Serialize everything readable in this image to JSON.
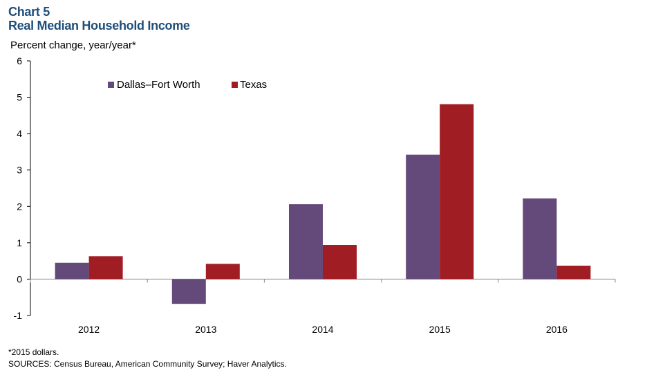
{
  "header": {
    "chart_number": "Chart 5",
    "title": "Real Median Household Income",
    "y_axis_label": "Percent change, year/year*"
  },
  "footer": {
    "note": "*2015 dollars.",
    "sources": "SOURCES: Census Bureau, American Community Survey; Haver Analytics."
  },
  "colors": {
    "title": "#1f4e79",
    "dallas_fort_worth": "#644a7a",
    "texas": "#a11d24"
  },
  "chart_data": {
    "type": "bar",
    "title": "Real Median Household Income",
    "ylabel": "Percent change, year/year*",
    "xlabel": "",
    "categories": [
      "2012",
      "2013",
      "2014",
      "2015",
      "2016"
    ],
    "series": [
      {
        "name": "Dallas–Fort Worth",
        "color": "#644a7a",
        "values": [
          0.45,
          -0.68,
          2.06,
          3.42,
          2.22
        ]
      },
      {
        "name": "Texas",
        "color": "#a11d24",
        "values": [
          0.63,
          0.42,
          0.94,
          4.81,
          0.37
        ]
      }
    ],
    "ylim": [
      -1,
      6
    ],
    "yticks": [
      -1,
      0,
      1,
      2,
      3,
      4,
      5,
      6
    ],
    "grid": false,
    "legend_position": "top-left"
  }
}
